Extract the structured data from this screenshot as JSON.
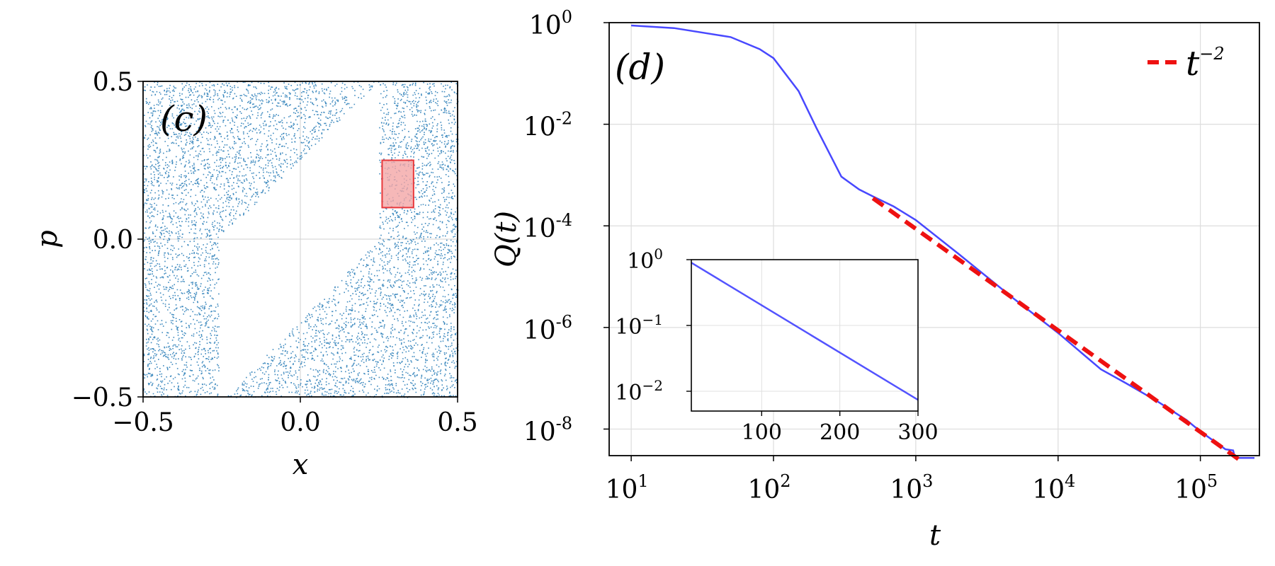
{
  "chart_data": [
    {
      "panel": "(c)",
      "type": "scatter",
      "xlabel": "x",
      "ylabel": "p",
      "xlim": [
        -0.5,
        0.5
      ],
      "ylim": [
        -0.5,
        0.5
      ],
      "xticks": [
        "−0.5",
        "0.0",
        "0.5"
      ],
      "yticks": [
        "−0.5",
        "0.0",
        "0.5"
      ],
      "grid": true,
      "point_color": "#1f77b4",
      "empty_region_polygon": [
        [
          -0.26,
          -0.5
        ],
        [
          -0.26,
          0.0
        ],
        [
          0.25,
          0.5
        ],
        [
          0.25,
          0.0
        ],
        [
          -0.24,
          -0.5
        ]
      ],
      "highlight_rect": {
        "x": [
          0.26,
          0.36
        ],
        "y": [
          0.1,
          0.25
        ],
        "fill": "#f4a6a6",
        "stroke": "#e8383c"
      }
    },
    {
      "panel": "(d)",
      "type": "line",
      "xscale": "log",
      "yscale": "log",
      "xlabel": "t",
      "ylabel": "Q(t)",
      "xlim": [
        7,
        260000
      ],
      "ylim": [
        3e-09,
        1
      ],
      "xticks": [
        {
          "base": "10",
          "exp": "1"
        },
        {
          "base": "10",
          "exp": "2"
        },
        {
          "base": "10",
          "exp": "3"
        },
        {
          "base": "10",
          "exp": "4"
        },
        {
          "base": "10",
          "exp": "5"
        }
      ],
      "yticks": [
        {
          "base": "10",
          "exp": "0"
        },
        {
          "base": "10",
          "exp": "-2"
        },
        {
          "base": "10",
          "exp": "-4"
        },
        {
          "base": "10",
          "exp": "-6"
        },
        {
          "base": "10",
          "exp": "-8"
        }
      ],
      "grid": true,
      "legend_position": "top-right",
      "series": [
        {
          "color": "#1a1aff",
          "style": "solid",
          "x": [
            10,
            20,
            50,
            80,
            100,
            150,
            200,
            300,
            400,
            500,
            700,
            1000,
            2000,
            5000,
            10000,
            20000,
            30000,
            50000,
            80000,
            100000,
            150000,
            170000,
            175000,
            240000
          ],
          "y": [
            0.88,
            0.78,
            0.52,
            0.3,
            0.2,
            0.045,
            0.0085,
            0.00093,
            0.00052,
            0.00038,
            0.00024,
            0.00013,
            2.8e-05,
            3.5e-06,
            7.8e-07,
            1.5e-07,
            8e-08,
            3.5e-08,
            1.5e-08,
            9e-09,
            4e-09,
            3.8e-09,
            2.7e-09,
            2.7e-09
          ]
        },
        {
          "name": "t^{-2}",
          "color": "#ee1111",
          "style": "dashed",
          "x": [
            500,
            200000
          ],
          "y": [
            0.00035,
            2.2e-09
          ]
        }
      ],
      "legend": {
        "base": "t",
        "exp": "−2"
      },
      "inset": {
        "type": "line",
        "yscale": "log",
        "xlim": [
          10,
          300
        ],
        "ylim": [
          0.005,
          1
        ],
        "xticks": [
          "100",
          "200",
          "300"
        ],
        "yticks": [
          {
            "base": "10",
            "exp": "0"
          },
          {
            "base": "10",
            "exp": "−1"
          },
          {
            "base": "10",
            "exp": "−2"
          }
        ],
        "series": [
          {
            "color": "#1a1aff",
            "x": [
              10,
              300
            ],
            "y": [
              0.9,
              0.0074
            ]
          }
        ]
      }
    }
  ]
}
